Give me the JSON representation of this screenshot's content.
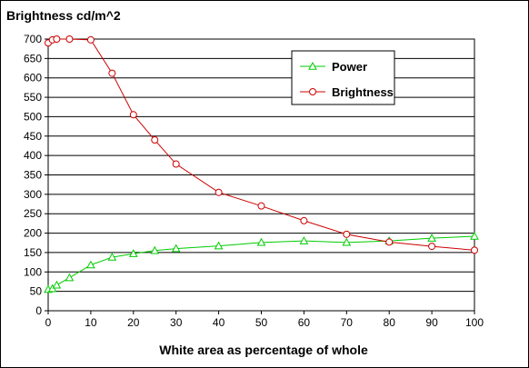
{
  "chart_data": {
    "type": "line",
    "title": "Brightness cd/m^2",
    "xlabel": "White area as percentage of whole",
    "ylabel": "",
    "xlim": [
      0,
      100
    ],
    "ylim": [
      0,
      700
    ],
    "xticks": [
      0,
      10,
      20,
      30,
      40,
      50,
      60,
      70,
      80,
      90,
      100
    ],
    "yticks": [
      0,
      50,
      100,
      150,
      200,
      250,
      300,
      350,
      400,
      450,
      500,
      550,
      600,
      650,
      700
    ],
    "grid": "horizontal",
    "legend_position": "top-right",
    "series": [
      {
        "name": "Power",
        "color": "#00cc00",
        "marker": "triangle",
        "x": [
          0,
          1,
          2,
          5,
          10,
          15,
          20,
          25,
          30,
          40,
          50,
          60,
          70,
          80,
          90,
          100
        ],
        "y": [
          55,
          57,
          66,
          85,
          118,
          138,
          147,
          155,
          160,
          167,
          176,
          180,
          176,
          180,
          187,
          192
        ]
      },
      {
        "name": "Brightness",
        "color": "#cc0000",
        "marker": "circle",
        "x": [
          0,
          1,
          2,
          5,
          10,
          15,
          20,
          25,
          30,
          40,
          50,
          60,
          70,
          80,
          90,
          100
        ],
        "y": [
          690,
          698,
          700,
          700,
          698,
          612,
          505,
          440,
          378,
          305,
          270,
          232,
          197,
          177,
          166,
          156
        ]
      }
    ]
  }
}
